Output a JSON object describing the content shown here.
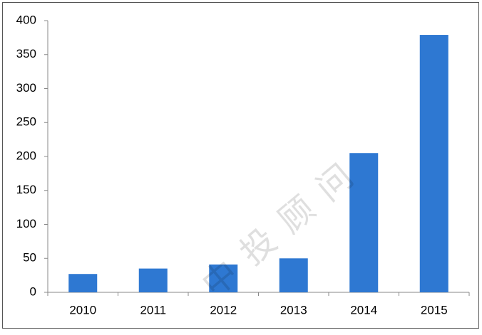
{
  "chart_data": {
    "type": "bar",
    "categories": [
      "2010",
      "2011",
      "2012",
      "2013",
      "2014",
      "2015"
    ],
    "values": [
      27,
      35,
      41,
      50,
      205,
      379
    ],
    "color": "#2e78d2",
    "ylim": [
      0,
      400
    ],
    "yticks": [
      0,
      50,
      100,
      150,
      200,
      250,
      300,
      350,
      400
    ],
    "grid": false,
    "watermark": "中投顾问"
  }
}
